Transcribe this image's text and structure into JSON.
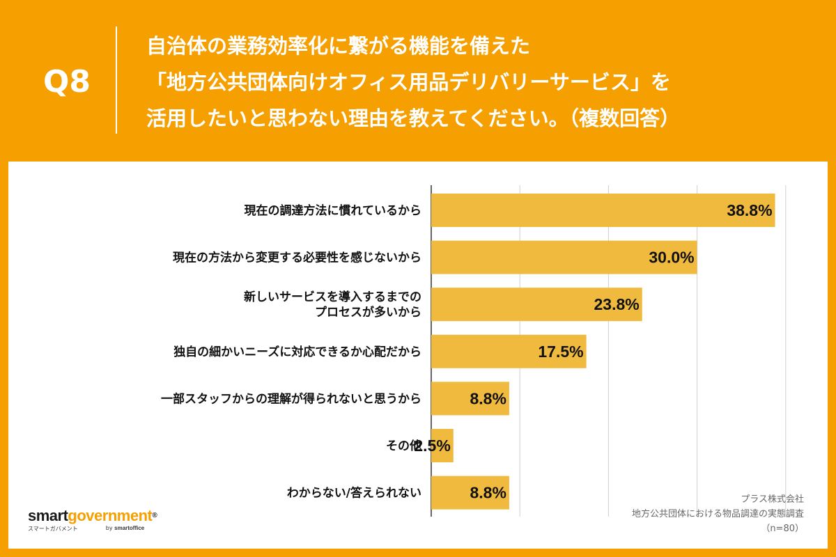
{
  "header": {
    "qnum": "Q8",
    "title_lines": [
      "自治体の業務効率化に繋がる機能を備えた",
      "「地方公共団体向けオフィス用品デリバリーサービス」を",
      "活用したいと思わない理由を教えてください。（複数回答）"
    ]
  },
  "colors": {
    "background": "#F5A000",
    "bar": "#F0BA3E",
    "panel": "#FFFFFF",
    "grid": "#D0D0D0"
  },
  "chart_data": {
    "type": "bar",
    "orientation": "horizontal",
    "categories": [
      [
        "現在の調達方法に慣れているから"
      ],
      [
        "現在の方法から変更する必要性を感じないから"
      ],
      [
        "新しいサービスを導入するまでの",
        "プロセスが多いから"
      ],
      [
        "独自の細かいニーズに対応できるか心配だから"
      ],
      [
        "一部スタッフからの理解が得られないと思うから"
      ],
      [
        "その他"
      ],
      [
        "わからない/答えられない"
      ]
    ],
    "values": [
      38.8,
      30.0,
      23.8,
      17.5,
      8.8,
      2.5,
      8.8
    ],
    "value_labels": [
      "38.8%",
      "30.0%",
      "23.8%",
      "17.5%",
      "8.8%",
      "2.5%",
      "8.8%"
    ],
    "xlim": [
      0,
      40
    ],
    "grid": true
  },
  "source": {
    "line1": "プラス株式会社",
    "line2": "地方公共団体における物品調達の実態調査",
    "line3": "（n=80）"
  },
  "logo": {
    "part1": "smart",
    "part2": "government",
    "mark": "®",
    "kana": "スマートガバメント",
    "by": "by",
    "brand": "smartoffice"
  }
}
